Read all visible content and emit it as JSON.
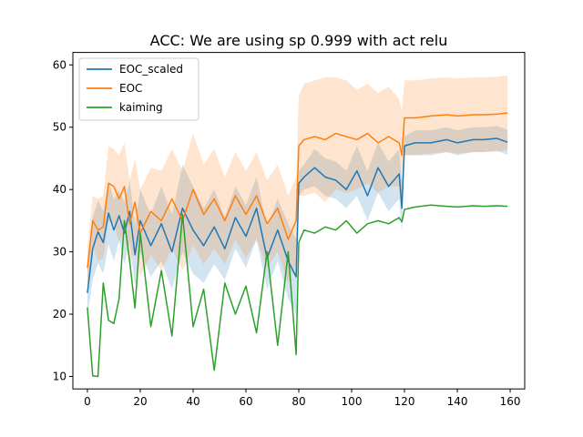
{
  "chart_data": {
    "type": "line",
    "title": "ACC: We are using sp 0.999 with act relu",
    "xlabel": "",
    "ylabel": "",
    "xlim": [
      -5.5,
      165.5
    ],
    "ylim": [
      8,
      62
    ],
    "xticks": [
      0,
      20,
      40,
      60,
      80,
      100,
      120,
      140,
      160
    ],
    "yticks": [
      10,
      20,
      30,
      40,
      50,
      60
    ],
    "grid": false,
    "legend": "top-left",
    "x_key_epochs": [
      0,
      2,
      4,
      6,
      8,
      10,
      12,
      14,
      16,
      18,
      20,
      24,
      28,
      32,
      36,
      40,
      44,
      48,
      52,
      56,
      60,
      64,
      68,
      72,
      76,
      79,
      80,
      82,
      86,
      90,
      94,
      98,
      102,
      106,
      110,
      114,
      118,
      119,
      120,
      124,
      130,
      136,
      140,
      146,
      150,
      155,
      159
    ],
    "series": [
      {
        "name": "EOC_scaled",
        "color": "#1f77b4",
        "band_width": [
          4,
          5,
          5,
          5,
          5,
          5,
          4,
          5,
          5,
          5,
          5,
          5,
          6,
          6,
          7,
          7,
          6,
          6,
          5,
          5,
          5,
          5,
          5,
          5,
          6,
          6,
          2,
          2,
          3,
          3,
          3,
          3,
          4,
          4,
          4,
          4,
          4,
          4,
          1.5,
          2,
          2,
          2,
          2,
          2,
          2,
          2,
          2
        ],
        "values": [
          23.4,
          30.5,
          33.2,
          31.5,
          36.2,
          33.5,
          35.8,
          33.0,
          36.5,
          29.5,
          35.0,
          31.0,
          34.5,
          30.0,
          37.0,
          33.5,
          31.0,
          34.0,
          30.5,
          35.5,
          32.5,
          37.0,
          29.0,
          33.5,
          28.5,
          26.0,
          41.0,
          42.0,
          43.5,
          42.0,
          41.5,
          40.0,
          43.0,
          39.0,
          43.5,
          40.5,
          42.5,
          37.0,
          47.0,
          47.5,
          47.5,
          48.0,
          47.5,
          48.0,
          48.0,
          48.2,
          47.6
        ]
      },
      {
        "name": "EOC",
        "color": "#ff7f0e",
        "band_width": [
          3,
          4,
          5,
          5,
          6,
          6,
          7,
          7,
          7,
          7,
          7,
          7,
          8,
          8,
          8,
          9,
          8,
          8,
          7,
          7,
          7,
          7,
          7,
          7,
          7,
          7,
          8,
          9,
          9,
          10,
          9,
          9,
          8,
          8,
          8,
          8,
          7,
          7,
          6,
          6,
          6,
          6,
          6,
          6,
          6,
          6,
          6
        ],
        "values": [
          27.4,
          35.0,
          33.5,
          34.0,
          41.0,
          40.5,
          38.5,
          40.5,
          34.5,
          38.0,
          33.0,
          36.5,
          35.0,
          38.5,
          35.0,
          40.0,
          36.0,
          38.5,
          35.0,
          39.0,
          36.0,
          39.0,
          34.5,
          37.0,
          32.0,
          35.0,
          47.0,
          48.0,
          48.5,
          48.0,
          49.0,
          48.5,
          48.0,
          49.0,
          47.5,
          48.5,
          47.5,
          45.5,
          51.5,
          51.5,
          51.8,
          52.0,
          51.8,
          52.0,
          52.0,
          52.1,
          52.3
        ]
      },
      {
        "name": "kaiming",
        "color": "#2ca02c",
        "band_width": [],
        "values": [
          21.1,
          10.1,
          10.0,
          25.0,
          19.0,
          18.5,
          22.5,
          35.0,
          28.5,
          21.0,
          33.0,
          18.0,
          27.0,
          16.5,
          36.0,
          18.0,
          24.0,
          11.0,
          25.0,
          20.0,
          24.5,
          17.0,
          30.0,
          15.0,
          30.0,
          13.5,
          31.5,
          33.5,
          33.0,
          34.0,
          33.5,
          35.0,
          33.0,
          34.5,
          35.0,
          34.5,
          35.5,
          34.8,
          36.8,
          37.2,
          37.5,
          37.3,
          37.2,
          37.4,
          37.3,
          37.4,
          37.3
        ]
      }
    ]
  }
}
